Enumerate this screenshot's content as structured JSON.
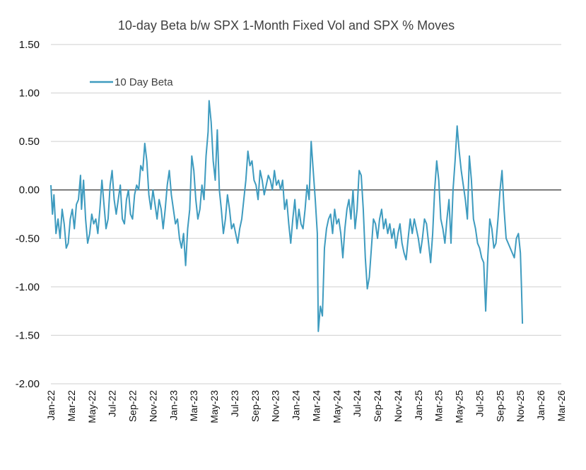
{
  "chart_data": {
    "type": "line",
    "title": "10-day Beta b/w SPX 1-Month Fixed Vol and SPX % Moves",
    "xlabel": "",
    "ylabel": "",
    "ylim": [
      -2.0,
      1.5
    ],
    "yticks": [
      "1.50",
      "1.00",
      "0.50",
      "0.00",
      "-0.50",
      "-1.00",
      "-1.50",
      "-2.00"
    ],
    "xticks": [
      "Jan-22",
      "Mar-22",
      "May-22",
      "Jul-22",
      "Sep-22",
      "Nov-22",
      "Jan-23",
      "Mar-23",
      "May-23",
      "Jul-23",
      "Sep-23",
      "Nov-23",
      "Jan-24",
      "Mar-24",
      "May-24",
      "Jul-24",
      "Sep-24",
      "Nov-24",
      "Jan-25",
      "Mar-25",
      "May-25",
      "Jul-25",
      "Sep-25",
      "Nov-25",
      "Jan-26",
      "Mar-26"
    ],
    "grid": true,
    "legend_position": "top-left",
    "series": [
      {
        "name": "10 Day Beta",
        "color": "#3e9bbf",
        "x_unit": "months since Jan-22",
        "points": [
          [
            0.0,
            0.05
          ],
          [
            0.15,
            -0.25
          ],
          [
            0.3,
            -0.05
          ],
          [
            0.5,
            -0.45
          ],
          [
            0.7,
            -0.3
          ],
          [
            0.9,
            -0.5
          ],
          [
            1.1,
            -0.2
          ],
          [
            1.3,
            -0.35
          ],
          [
            1.5,
            -0.6
          ],
          [
            1.7,
            -0.55
          ],
          [
            1.9,
            -0.3
          ],
          [
            2.1,
            -0.2
          ],
          [
            2.3,
            -0.4
          ],
          [
            2.5,
            -0.15
          ],
          [
            2.7,
            -0.1
          ],
          [
            2.9,
            0.15
          ],
          [
            3.0,
            -0.2
          ],
          [
            3.2,
            0.1
          ],
          [
            3.4,
            -0.3
          ],
          [
            3.6,
            -0.55
          ],
          [
            3.8,
            -0.45
          ],
          [
            4.0,
            -0.25
          ],
          [
            4.2,
            -0.35
          ],
          [
            4.4,
            -0.3
          ],
          [
            4.6,
            -0.45
          ],
          [
            4.8,
            -0.2
          ],
          [
            5.0,
            0.1
          ],
          [
            5.2,
            -0.15
          ],
          [
            5.4,
            -0.4
          ],
          [
            5.6,
            -0.3
          ],
          [
            5.8,
            0.05
          ],
          [
            6.0,
            0.2
          ],
          [
            6.2,
            -0.1
          ],
          [
            6.4,
            -0.25
          ],
          [
            6.6,
            -0.1
          ],
          [
            6.8,
            0.05
          ],
          [
            7.0,
            -0.3
          ],
          [
            7.2,
            -0.35
          ],
          [
            7.4,
            -0.1
          ],
          [
            7.6,
            0.0
          ],
          [
            7.8,
            -0.25
          ],
          [
            8.0,
            -0.3
          ],
          [
            8.2,
            -0.05
          ],
          [
            8.4,
            0.05
          ],
          [
            8.6,
            0.0
          ],
          [
            8.8,
            0.25
          ],
          [
            9.0,
            0.2
          ],
          [
            9.2,
            0.48
          ],
          [
            9.4,
            0.3
          ],
          [
            9.6,
            -0.05
          ],
          [
            9.8,
            -0.2
          ],
          [
            10.0,
            0.0
          ],
          [
            10.2,
            -0.15
          ],
          [
            10.4,
            -0.3
          ],
          [
            10.6,
            -0.1
          ],
          [
            10.8,
            -0.2
          ],
          [
            11.0,
            -0.4
          ],
          [
            11.2,
            -0.2
          ],
          [
            11.4,
            0.05
          ],
          [
            11.6,
            0.2
          ],
          [
            11.8,
            -0.05
          ],
          [
            12.0,
            -0.2
          ],
          [
            12.2,
            -0.35
          ],
          [
            12.4,
            -0.3
          ],
          [
            12.6,
            -0.5
          ],
          [
            12.8,
            -0.6
          ],
          [
            13.0,
            -0.45
          ],
          [
            13.2,
            -0.78
          ],
          [
            13.4,
            -0.4
          ],
          [
            13.6,
            -0.2
          ],
          [
            13.8,
            0.35
          ],
          [
            14.0,
            0.2
          ],
          [
            14.2,
            -0.1
          ],
          [
            14.4,
            -0.3
          ],
          [
            14.6,
            -0.2
          ],
          [
            14.8,
            0.05
          ],
          [
            15.0,
            -0.1
          ],
          [
            15.2,
            0.35
          ],
          [
            15.4,
            0.6
          ],
          [
            15.5,
            0.92
          ],
          [
            15.7,
            0.7
          ],
          [
            15.9,
            0.3
          ],
          [
            16.1,
            0.1
          ],
          [
            16.3,
            0.62
          ],
          [
            16.5,
            0.0
          ],
          [
            16.7,
            -0.2
          ],
          [
            16.9,
            -0.45
          ],
          [
            17.1,
            -0.3
          ],
          [
            17.3,
            -0.05
          ],
          [
            17.5,
            -0.2
          ],
          [
            17.7,
            -0.4
          ],
          [
            17.9,
            -0.35
          ],
          [
            18.1,
            -0.45
          ],
          [
            18.3,
            -0.55
          ],
          [
            18.5,
            -0.4
          ],
          [
            18.7,
            -0.3
          ],
          [
            18.9,
            -0.1
          ],
          [
            19.1,
            0.1
          ],
          [
            19.3,
            0.4
          ],
          [
            19.5,
            0.25
          ],
          [
            19.7,
            0.3
          ],
          [
            19.9,
            0.1
          ],
          [
            20.1,
            0.05
          ],
          [
            20.3,
            -0.1
          ],
          [
            20.5,
            0.2
          ],
          [
            20.7,
            0.1
          ],
          [
            20.9,
            -0.05
          ],
          [
            21.1,
            0.05
          ],
          [
            21.3,
            0.15
          ],
          [
            21.5,
            0.1
          ],
          [
            21.7,
            0.0
          ],
          [
            21.9,
            0.2
          ],
          [
            22.1,
            0.05
          ],
          [
            22.3,
            0.1
          ],
          [
            22.5,
            0.0
          ],
          [
            22.7,
            0.1
          ],
          [
            22.9,
            -0.2
          ],
          [
            23.1,
            -0.1
          ],
          [
            23.3,
            -0.35
          ],
          [
            23.5,
            -0.55
          ],
          [
            23.7,
            -0.3
          ],
          [
            23.9,
            -0.1
          ],
          [
            24.1,
            -0.4
          ],
          [
            24.3,
            -0.2
          ],
          [
            24.5,
            -0.35
          ],
          [
            24.7,
            -0.4
          ],
          [
            24.9,
            -0.2
          ],
          [
            25.1,
            0.05
          ],
          [
            25.3,
            -0.1
          ],
          [
            25.5,
            0.5
          ],
          [
            25.7,
            0.2
          ],
          [
            25.9,
            -0.1
          ],
          [
            26.1,
            -0.45
          ],
          [
            26.2,
            -1.46
          ],
          [
            26.4,
            -1.2
          ],
          [
            26.6,
            -1.3
          ],
          [
            26.8,
            -0.6
          ],
          [
            27.0,
            -0.4
          ],
          [
            27.2,
            -0.3
          ],
          [
            27.4,
            -0.25
          ],
          [
            27.6,
            -0.45
          ],
          [
            27.8,
            -0.2
          ],
          [
            28.0,
            -0.35
          ],
          [
            28.2,
            -0.3
          ],
          [
            28.4,
            -0.45
          ],
          [
            28.6,
            -0.7
          ],
          [
            28.8,
            -0.4
          ],
          [
            29.0,
            -0.2
          ],
          [
            29.2,
            -0.1
          ],
          [
            29.4,
            -0.3
          ],
          [
            29.6,
            0.0
          ],
          [
            29.8,
            -0.4
          ],
          [
            30.0,
            -0.2
          ],
          [
            30.2,
            0.2
          ],
          [
            30.4,
            0.15
          ],
          [
            30.6,
            -0.2
          ],
          [
            30.8,
            -0.7
          ],
          [
            31.0,
            -1.02
          ],
          [
            31.2,
            -0.9
          ],
          [
            31.4,
            -0.6
          ],
          [
            31.6,
            -0.3
          ],
          [
            31.8,
            -0.35
          ],
          [
            32.0,
            -0.5
          ],
          [
            32.2,
            -0.3
          ],
          [
            32.4,
            -0.2
          ],
          [
            32.6,
            -0.4
          ],
          [
            32.8,
            -0.3
          ],
          [
            33.0,
            -0.45
          ],
          [
            33.2,
            -0.35
          ],
          [
            33.4,
            -0.5
          ],
          [
            33.6,
            -0.4
          ],
          [
            33.8,
            -0.6
          ],
          [
            34.0,
            -0.45
          ],
          [
            34.2,
            -0.35
          ],
          [
            34.4,
            -0.55
          ],
          [
            34.6,
            -0.65
          ],
          [
            34.8,
            -0.72
          ],
          [
            35.0,
            -0.5
          ],
          [
            35.2,
            -0.3
          ],
          [
            35.4,
            -0.45
          ],
          [
            35.6,
            -0.3
          ],
          [
            35.8,
            -0.4
          ],
          [
            36.0,
            -0.5
          ],
          [
            36.2,
            -0.65
          ],
          [
            36.4,
            -0.5
          ],
          [
            36.6,
            -0.3
          ],
          [
            36.8,
            -0.35
          ],
          [
            37.0,
            -0.55
          ],
          [
            37.2,
            -0.75
          ],
          [
            37.4,
            -0.45
          ],
          [
            37.6,
            0.0
          ],
          [
            37.8,
            0.3
          ],
          [
            38.0,
            0.1
          ],
          [
            38.2,
            -0.3
          ],
          [
            38.4,
            -0.4
          ],
          [
            38.6,
            -0.55
          ],
          [
            38.8,
            -0.3
          ],
          [
            39.0,
            -0.1
          ],
          [
            39.2,
            -0.55
          ],
          [
            39.4,
            0.0
          ],
          [
            39.6,
            0.3
          ],
          [
            39.8,
            0.66
          ],
          [
            40.0,
            0.4
          ],
          [
            40.2,
            0.2
          ],
          [
            40.4,
            0.05
          ],
          [
            40.6,
            -0.1
          ],
          [
            40.8,
            -0.3
          ],
          [
            41.0,
            0.35
          ],
          [
            41.2,
            0.1
          ],
          [
            41.4,
            -0.3
          ],
          [
            41.6,
            -0.4
          ],
          [
            41.8,
            -0.55
          ],
          [
            42.0,
            -0.6
          ],
          [
            42.2,
            -0.7
          ],
          [
            42.4,
            -0.75
          ],
          [
            42.6,
            -1.25
          ],
          [
            42.8,
            -0.7
          ],
          [
            43.0,
            -0.3
          ],
          [
            43.2,
            -0.4
          ],
          [
            43.4,
            -0.6
          ],
          [
            43.6,
            -0.55
          ],
          [
            43.8,
            -0.3
          ],
          [
            44.0,
            0.0
          ],
          [
            44.2,
            0.2
          ],
          [
            44.4,
            -0.2
          ],
          [
            44.6,
            -0.5
          ],
          [
            44.8,
            -0.55
          ],
          [
            45.0,
            -0.6
          ],
          [
            45.2,
            -0.65
          ],
          [
            45.4,
            -0.7
          ],
          [
            45.6,
            -0.5
          ],
          [
            45.8,
            -0.45
          ],
          [
            46.0,
            -0.65
          ],
          [
            46.1,
            -1.0
          ],
          [
            46.2,
            -1.38
          ]
        ]
      }
    ]
  }
}
